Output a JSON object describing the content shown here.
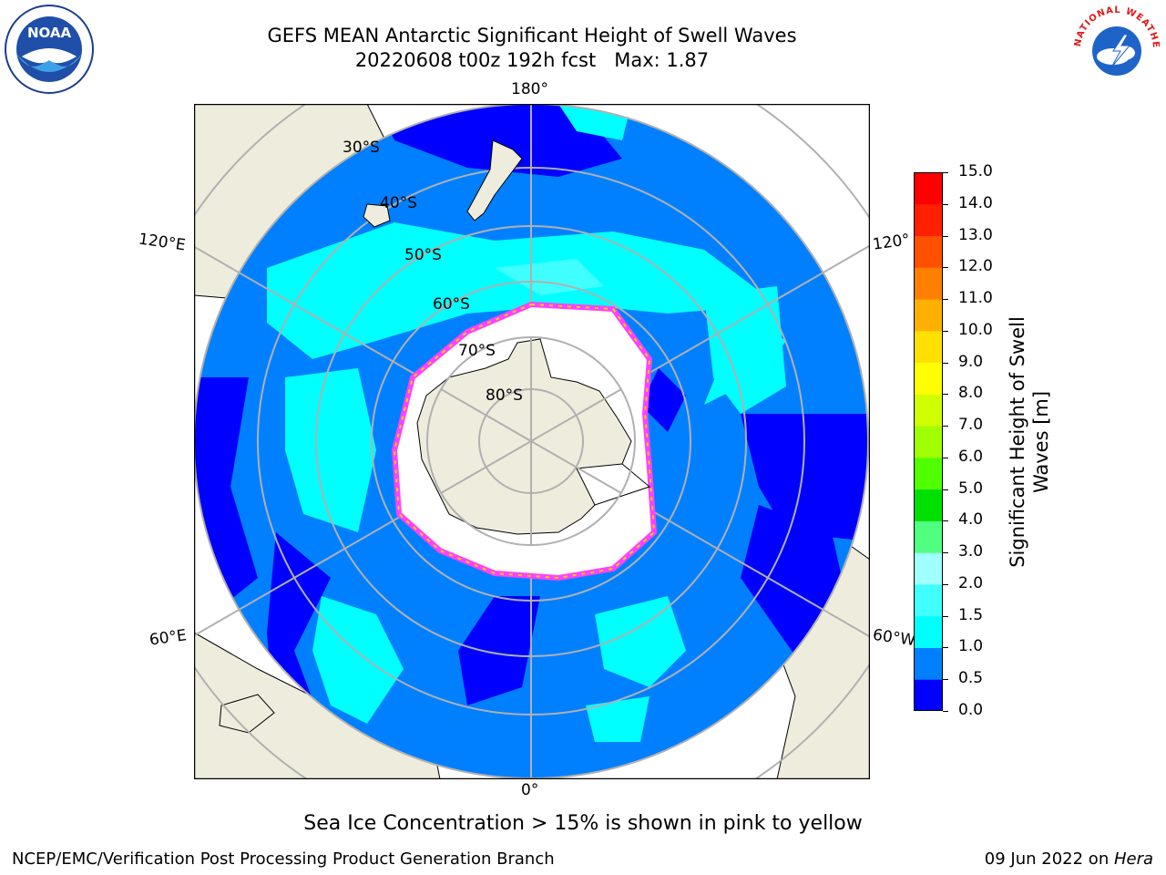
{
  "title": {
    "line1": "GEFS MEAN Antarctic Significant Height of Swell Waves",
    "line2": "20220608 t00z 192h fcst   Max: 1.87"
  },
  "logos": {
    "left": "NOAA",
    "right": "NATIONAL WEATHER SERVICE"
  },
  "map": {
    "projection": "south-polar-stereographic",
    "longitude_labels": {
      "top": "180°",
      "bottom": "0°",
      "left_upper": "120°E",
      "left_lower": "60°E",
      "right_upper": "120°",
      "right_lower": "60°W"
    },
    "latitude_labels": [
      "30°S",
      "40°S",
      "50°S",
      "60°S",
      "70°S",
      "80°S"
    ],
    "colors": {
      "land": "#eeeddd",
      "sea_ice": "#ffffff",
      "grid": "#b0b0b0"
    }
  },
  "colorbar": {
    "label_line1": "Significant Height of Swell",
    "label_line2": "Waves [m]",
    "ticks": [
      "0.0",
      "0.5",
      "1.0",
      "1.5",
      "2.0",
      "3.0",
      "4.0",
      "5.0",
      "6.0",
      "7.0",
      "8.0",
      "9.0",
      "10.0",
      "11.0",
      "12.0",
      "13.0",
      "14.0",
      "15.0"
    ],
    "colors": [
      "#0000ff",
      "#0080ff",
      "#00ffff",
      "#40ffff",
      "#a0ffff",
      "#50ff80",
      "#00e000",
      "#50ff00",
      "#a0ff00",
      "#d0ff00",
      "#ffff00",
      "#ffe000",
      "#ffb000",
      "#ff8000",
      "#ff5000",
      "#ff2000",
      "#ff0000"
    ]
  },
  "note": "Sea Ice Concentration > 15% is shown in pink to yellow",
  "footer": {
    "left": "NCEP/EMC/Verification Post Processing Product Generation Branch",
    "right_prefix": "09 Jun 2022 on ",
    "right_host": "Hera"
  }
}
